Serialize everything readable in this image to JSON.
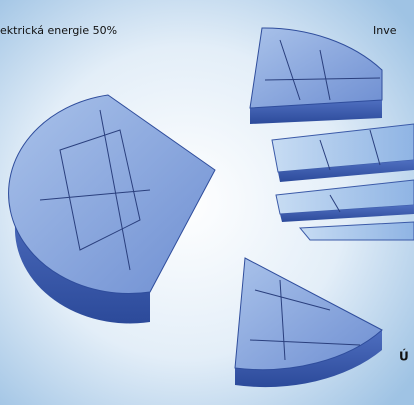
{
  "labels": {
    "top_left": "ektrická energie 50%",
    "top_right": "Inve",
    "bottom_right": "Ú"
  }
}
